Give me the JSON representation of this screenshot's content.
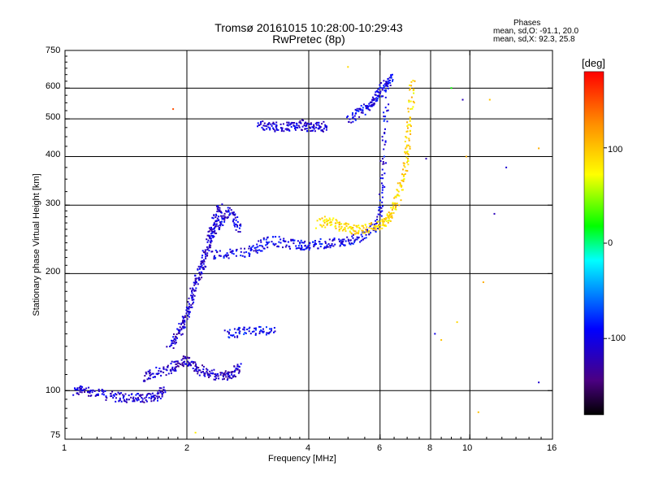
{
  "chart_data": {
    "type": "scatter",
    "title": "Tromsø 20161015 10:28:00-10:29:43",
    "subtitle": "RwPretec (8p)",
    "xlabel": "Frequency [MHz]",
    "ylabel": "Stationary phase Virtual Height [km]",
    "x_scale": "log",
    "y_scale": "log",
    "xlim": [
      1,
      16
    ],
    "ylim": [
      75,
      750
    ],
    "x_ticks": [
      1,
      2,
      4,
      6,
      8,
      10,
      16
    ],
    "y_ticks": [
      75,
      100,
      200,
      300,
      400,
      500,
      600,
      750
    ],
    "x_gridlines": [
      2,
      4,
      6,
      8,
      10
    ],
    "y_gridlines": [
      100,
      200,
      300,
      400,
      500,
      600
    ],
    "grid": true,
    "colorbar": {
      "label": "[deg]",
      "ticks": [
        "100",
        "0",
        "-100"
      ],
      "range": [
        -180,
        180
      ],
      "colors": [
        "#000000",
        "#4b0082",
        "#0000ff",
        "#00ffff",
        "#00ff00",
        "#ffff00",
        "#ff8c00",
        "#ff0000"
      ]
    },
    "phases": {
      "heading": "Phases",
      "o_stats": "mean, sd,O: -91.1, 20.0",
      "x_stats": "mean, sd,X: 92.3, 25.8"
    },
    "traces": [
      {
        "x": [
          1.05,
          1.1,
          1.2,
          1.3,
          1.4,
          1.5,
          1.6,
          1.7,
          1.75
        ],
        "y": [
          100,
          101,
          99,
          97,
          96,
          96,
          96,
          98,
          101
        ],
        "phase": -110
      },
      {
        "x": [
          1.55,
          1.65,
          1.8,
          1.9,
          2.0,
          2.1,
          2.2,
          2.35,
          2.5,
          2.6,
          2.7
        ],
        "y": [
          108,
          112,
          113,
          118,
          120,
          115,
          112,
          110,
          110,
          112,
          115
        ],
        "phase": -115
      },
      {
        "x": [
          1.8,
          1.9,
          1.95,
          2.0,
          2.05,
          2.1,
          2.15,
          2.2,
          2.25,
          2.3,
          2.35,
          2.4
        ],
        "y": [
          130,
          140,
          150,
          160,
          175,
          190,
          205,
          220,
          240,
          260,
          280,
          300
        ],
        "phase": -110
      },
      {
        "x": [
          2.3,
          2.5,
          2.8,
          3.0,
          3.2,
          3.5,
          3.8,
          4.0,
          4.3,
          4.7,
          5.0,
          5.4,
          5.8,
          6.0,
          6.1,
          6.2
        ],
        "y": [
          225,
          225,
          228,
          235,
          245,
          240,
          238,
          238,
          240,
          242,
          245,
          250,
          265,
          300,
          400,
          580
        ],
        "phase": -100
      },
      {
        "x": [
          2.3,
          2.4,
          2.5,
          2.6,
          2.7
        ],
        "y": [
          250,
          270,
          290,
          280,
          260
        ],
        "phase": -105
      },
      {
        "x": [
          3.0,
          3.2,
          3.4,
          3.6,
          3.8,
          4.0,
          4.2,
          4.4
        ],
        "y": [
          480,
          485,
          475,
          480,
          485,
          480,
          478,
          482
        ],
        "phase": -110
      },
      {
        "x": [
          5.0,
          5.3,
          5.6,
          5.8,
          6.0,
          6.2,
          6.4
        ],
        "y": [
          500,
          520,
          540,
          560,
          590,
          620,
          640
        ],
        "phase": -100
      },
      {
        "x": [
          2.5,
          2.7,
          3.0,
          3.3
        ],
        "y": [
          140,
          142,
          143,
          145
        ],
        "phase": -95
      },
      {
        "x": [
          4.2,
          4.5,
          4.8,
          5.1,
          5.4,
          5.8,
          6.1,
          6.3,
          6.5,
          6.7,
          6.9,
          7.0,
          7.1,
          7.2
        ],
        "y": [
          270,
          275,
          265,
          262,
          260,
          265,
          270,
          280,
          300,
          330,
          380,
          430,
          520,
          640
        ],
        "phase": 90
      }
    ],
    "scattered_points": [
      {
        "x": 1.85,
        "y": 530,
        "phase": 150
      },
      {
        "x": 2.1,
        "y": 78,
        "phase": 80
      },
      {
        "x": 5.0,
        "y": 680,
        "phase": 90
      },
      {
        "x": 7.8,
        "y": 395,
        "phase": -120
      },
      {
        "x": 8.2,
        "y": 140,
        "phase": -100
      },
      {
        "x": 8.5,
        "y": 135,
        "phase": 100
      },
      {
        "x": 9.0,
        "y": 600,
        "phase": 20
      },
      {
        "x": 9.3,
        "y": 150,
        "phase": 90
      },
      {
        "x": 9.6,
        "y": 560,
        "phase": -120
      },
      {
        "x": 9.8,
        "y": 400,
        "phase": 110
      },
      {
        "x": 10.5,
        "y": 88,
        "phase": 100
      },
      {
        "x": 10.8,
        "y": 190,
        "phase": 110
      },
      {
        "x": 11.2,
        "y": 560,
        "phase": 100
      },
      {
        "x": 11.5,
        "y": 285,
        "phase": -120
      },
      {
        "x": 12.3,
        "y": 375,
        "phase": -110
      },
      {
        "x": 14.8,
        "y": 105,
        "phase": -110
      },
      {
        "x": 14.8,
        "y": 420,
        "phase": 110
      }
    ]
  }
}
